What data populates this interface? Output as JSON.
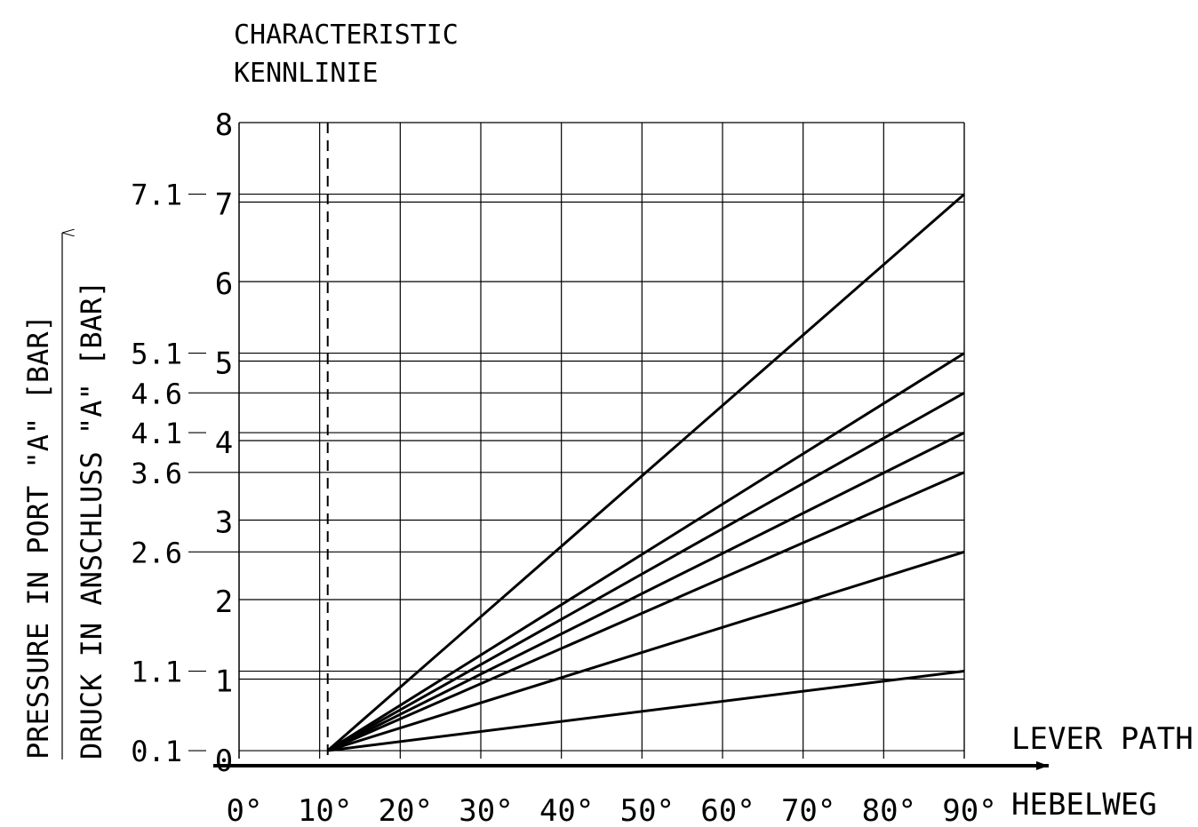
{
  "chart_data": {
    "type": "line",
    "title": [
      "CHARACTERISTIC",
      "KENNLINIE"
    ],
    "ylabel": [
      "PRESSURE IN PORT \"A\" [BAR]",
      "DRUCK IN ANSCHLUSS \"A\" [BAR]"
    ],
    "xlabel": [
      "LEVER PATH",
      "HEBELWEG"
    ],
    "xlim": [
      0,
      90
    ],
    "ylim": [
      0,
      8
    ],
    "x_ticks": [
      0,
      10,
      20,
      30,
      40,
      50,
      60,
      70,
      80,
      90
    ],
    "x_tick_labels": [
      "0°",
      "10°",
      "20°",
      "30°",
      "40°",
      "50°",
      "60°",
      "70°",
      "80°",
      "90°"
    ],
    "y_ticks": [
      0,
      1,
      2,
      3,
      4,
      5,
      6,
      7,
      8
    ],
    "y_tick_labels": [
      "0",
      "1",
      "2",
      "3",
      "4",
      "5",
      "6",
      "7",
      "8"
    ],
    "extra_y_levels": [
      0.1,
      1.1,
      2.6,
      3.6,
      4.1,
      4.6,
      5.1,
      7.1
    ],
    "extra_y_labels": [
      "0.1",
      "1.1",
      "2.6",
      "3.6",
      "4.1",
      "4.6",
      "5.1",
      "7.1"
    ],
    "grid": true,
    "dashed_vline_x": 11,
    "series": [
      {
        "points": [
          [
            11,
            0.1
          ],
          [
            90,
            1.1
          ]
        ]
      },
      {
        "points": [
          [
            11,
            0.1
          ],
          [
            90,
            2.6
          ]
        ]
      },
      {
        "points": [
          [
            11,
            0.1
          ],
          [
            90,
            3.6
          ]
        ]
      },
      {
        "points": [
          [
            11,
            0.1
          ],
          [
            90,
            4.1
          ]
        ]
      },
      {
        "points": [
          [
            11,
            0.1
          ],
          [
            90,
            4.6
          ]
        ]
      },
      {
        "points": [
          [
            11,
            0.1
          ],
          [
            90,
            5.1
          ]
        ]
      },
      {
        "points": [
          [
            11,
            0.1
          ],
          [
            90,
            7.1
          ]
        ]
      }
    ]
  }
}
